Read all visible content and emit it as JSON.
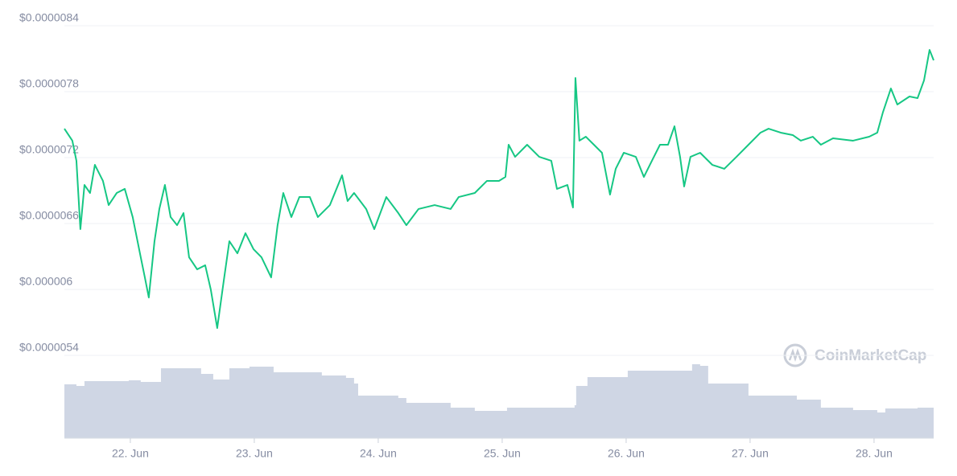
{
  "chart_data": {
    "type": "line",
    "watermark": "CoinMarketCap",
    "xlim": [
      21.468,
      28.481
    ],
    "xticks": [
      {
        "value": 22,
        "label": "22. Jun"
      },
      {
        "value": 23,
        "label": "23. Jun"
      },
      {
        "value": 24,
        "label": "24. Jun"
      },
      {
        "value": 25,
        "label": "25. Jun"
      },
      {
        "value": 26,
        "label": "26. Jun"
      },
      {
        "value": 27,
        "label": "27. Jun"
      },
      {
        "value": 28,
        "label": "28. Jun"
      }
    ],
    "ylim": [
      5.4e-06,
      8.4e-06
    ],
    "yticks": [
      {
        "value": 5.4e-06,
        "label": "$0.0000054"
      },
      {
        "value": 6e-06,
        "label": "$0.000006"
      },
      {
        "value": 6.6e-06,
        "label": "$0.0000066"
      },
      {
        "value": 7.2e-06,
        "label": "$0.0000072"
      },
      {
        "value": 7.8e-06,
        "label": "$0.0000078"
      },
      {
        "value": 8.4e-06,
        "label": "$0.0000084"
      }
    ],
    "y2lim": [
      0,
      100
    ],
    "grid": true,
    "series": [
      {
        "color": "#16c784",
        "x": [
          21.468,
          21.532,
          21.565,
          21.597,
          21.63,
          21.675,
          21.714,
          21.779,
          21.825,
          21.89,
          21.955,
          22.019,
          22.084,
          22.117,
          22.149,
          22.195,
          22.234,
          22.279,
          22.325,
          22.377,
          22.429,
          22.474,
          22.539,
          22.604,
          22.649,
          22.701,
          22.753,
          22.799,
          22.864,
          22.929,
          22.994,
          23.058,
          23.136,
          23.188,
          23.234,
          23.299,
          23.364,
          23.448,
          23.513,
          23.61,
          23.708,
          23.753,
          23.805,
          23.903,
          23.968,
          24.065,
          24.162,
          24.227,
          24.325,
          24.455,
          24.584,
          24.649,
          24.779,
          24.877,
          24.974,
          25.026,
          25.052,
          25.104,
          25.201,
          25.299,
          25.396,
          25.442,
          25.526,
          25.571,
          25.591,
          25.623,
          25.675,
          25.74,
          25.805,
          25.87,
          25.916,
          25.981,
          26.078,
          26.143,
          26.208,
          26.273,
          26.338,
          26.39,
          26.435,
          26.468,
          26.519,
          26.597,
          26.695,
          26.792,
          26.89,
          26.987,
          27.084,
          27.149,
          27.247,
          27.344,
          27.409,
          27.506,
          27.571,
          27.669,
          27.831,
          27.961,
          28.026,
          28.071,
          28.136,
          28.188,
          28.286,
          28.351,
          28.403,
          28.448,
          28.481
        ],
        "values": [
          7.463e-06,
          7.354e-06,
          7.171e-06,
          6.549e-06,
          6.951e-06,
          6.878e-06,
          7.134e-06,
          6.988e-06,
          6.768e-06,
          6.878e-06,
          6.915e-06,
          6.659e-06,
          6.293e-06,
          6.11e-06,
          5.927e-06,
          6.439e-06,
          6.732e-06,
          6.951e-06,
          6.659e-06,
          6.585e-06,
          6.695e-06,
          6.293e-06,
          6.183e-06,
          6.22e-06,
          6e-06,
          5.649e-06,
          6.073e-06,
          6.439e-06,
          6.329e-06,
          6.512e-06,
          6.366e-06,
          6.293e-06,
          6.11e-06,
          6.585e-06,
          6.878e-06,
          6.659e-06,
          6.841e-06,
          6.841e-06,
          6.659e-06,
          6.768e-06,
          7.039e-06,
          6.805e-06,
          6.878e-06,
          6.732e-06,
          6.549e-06,
          6.841e-06,
          6.695e-06,
          6.585e-06,
          6.732e-06,
          6.768e-06,
          6.732e-06,
          6.841e-06,
          6.878e-06,
          6.988e-06,
          6.988e-06,
          7.024e-06,
          7.317e-06,
          7.207e-06,
          7.317e-06,
          7.207e-06,
          7.171e-06,
          6.915e-06,
          6.951e-06,
          6.746e-06,
          7.924e-06,
          7.354e-06,
          7.39e-06,
          7.317e-06,
          7.244e-06,
          6.863e-06,
          7.098e-06,
          7.244e-06,
          7.207e-06,
          7.024e-06,
          7.171e-06,
          7.317e-06,
          7.317e-06,
          7.485e-06,
          7.207e-06,
          6.937e-06,
          7.207e-06,
          7.244e-06,
          7.134e-06,
          7.098e-06,
          7.207e-06,
          7.317e-06,
          7.427e-06,
          7.463e-06,
          7.427e-06,
          7.405e-06,
          7.354e-06,
          7.39e-06,
          7.317e-06,
          7.376e-06,
          7.354e-06,
          7.39e-06,
          7.427e-06,
          7.61e-06,
          7.829e-06,
          7.683e-06,
          7.756e-06,
          7.741e-06,
          7.902e-06,
          8.18e-06,
          8.085e-06
        ]
      },
      {
        "color": "#cfd6e4",
        "axis": "y2",
        "x": [
          21.468,
          21.565,
          21.63,
          21.987,
          22.084,
          22.247,
          22.571,
          22.669,
          22.799,
          22.961,
          23.156,
          23.545,
          23.74,
          23.805,
          23.838,
          24.162,
          24.227,
          24.584,
          24.779,
          25.039,
          25.584,
          25.597,
          25.688,
          26.013,
          26.532,
          26.597,
          26.662,
          26.987,
          27.377,
          27.571,
          27.831,
          28.026,
          28.091,
          28.351,
          28.481
        ],
        "values": [
          67,
          65,
          71,
          72,
          70,
          87,
          80,
          73,
          87,
          89,
          82,
          78,
          75,
          68,
          53,
          50,
          44,
          38,
          34,
          38,
          41,
          65,
          76,
          84,
          92,
          90,
          68,
          53,
          48,
          38,
          35,
          32,
          37,
          38,
          44
        ]
      }
    ]
  }
}
